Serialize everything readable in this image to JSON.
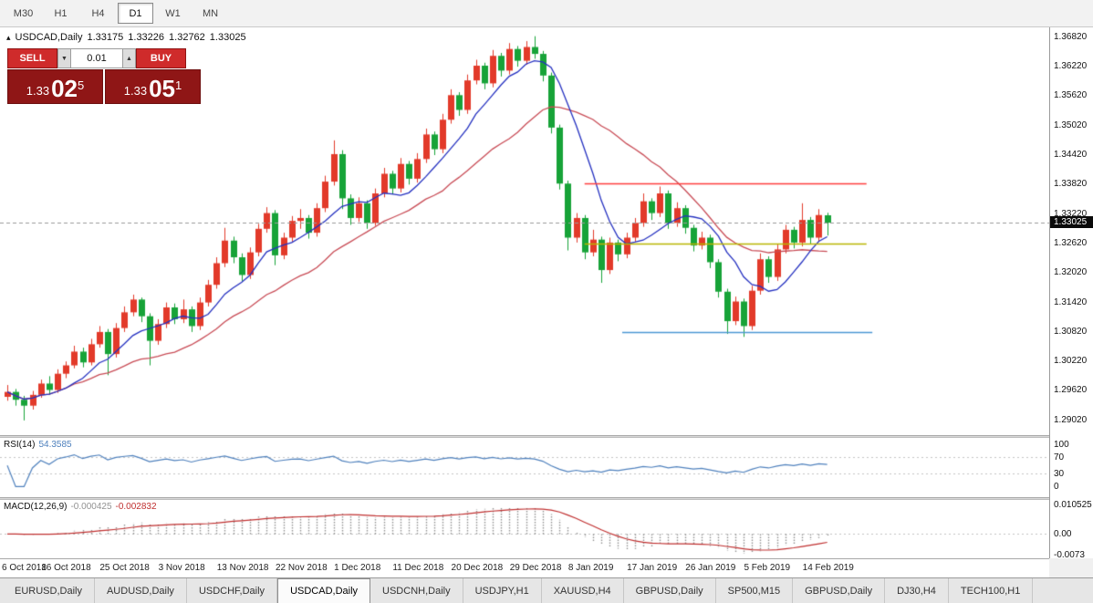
{
  "toolbar": {
    "timeframes": [
      {
        "label": "M30",
        "active": false
      },
      {
        "label": "H1",
        "active": false
      },
      {
        "label": "H4",
        "active": false
      },
      {
        "label": "D1",
        "active": true
      },
      {
        "label": "W1",
        "active": false
      },
      {
        "label": "MN",
        "active": false
      }
    ]
  },
  "chart_header": {
    "icon": "▴",
    "symbol": "USDCAD,Daily",
    "open": "1.33175",
    "high": "1.33226",
    "low": "1.32762",
    "close": "1.33025"
  },
  "trade_panel": {
    "sell_label": "SELL",
    "buy_label": "BUY",
    "volume": "0.01",
    "step_down_icon": "▼",
    "step_up_icon": "▲",
    "sell_price": {
      "prefix": "1.33",
      "big": "02",
      "sup": "5"
    },
    "buy_price": {
      "prefix": "1.33",
      "big": "05",
      "sup": "1"
    }
  },
  "price_scale": {
    "labels": [
      "1.36820",
      "1.36220",
      "1.35620",
      "1.35020",
      "1.34420",
      "1.33820",
      "1.33220",
      "1.32620",
      "1.32020",
      "1.31420",
      "1.30820",
      "1.30220",
      "1.29620",
      "1.29020"
    ],
    "current": "1.33025"
  },
  "rsi": {
    "title": "RSI(14)",
    "value": "54.3585",
    "period": 14,
    "scale_labels": [
      "100",
      "70",
      "30",
      "0"
    ],
    "level_lines": [
      70,
      30
    ],
    "line_color": "#4f81bd"
  },
  "macd": {
    "title": "MACD(12,26,9)",
    "value_main": "-0.000425",
    "value_signal": "-0.002832",
    "fast": 12,
    "slow": 26,
    "signal": 9,
    "scale_labels": [
      "0.010525",
      "0.00",
      "-0.0073"
    ],
    "histogram_color": "#929292",
    "signal_color": "#c03030"
  },
  "x_axis": {
    "labels": [
      {
        "text": "6 Oct 2018",
        "index": 0
      },
      {
        "text": "16 Oct 2018",
        "index": 7
      },
      {
        "text": "25 Oct 2018",
        "index": 14
      },
      {
        "text": "3 Nov 2018",
        "index": 21
      },
      {
        "text": "13 Nov 2018",
        "index": 28
      },
      {
        "text": "22 Nov 2018",
        "index": 35
      },
      {
        "text": "1 Dec 2018",
        "index": 42
      },
      {
        "text": "11 Dec 2018",
        "index": 49
      },
      {
        "text": "20 Dec 2018",
        "index": 56
      },
      {
        "text": "29 Dec 2018",
        "index": 63
      },
      {
        "text": "8 Jan 2019",
        "index": 70
      },
      {
        "text": "17 Jan 2019",
        "index": 77
      },
      {
        "text": "26 Jan 2019",
        "index": 84
      },
      {
        "text": "5 Feb 2019",
        "index": 91
      },
      {
        "text": "14 Feb 2019",
        "index": 98
      }
    ]
  },
  "tabs": [
    {
      "label": "EURUSD,Daily",
      "active": false
    },
    {
      "label": "AUDUSD,Daily",
      "active": false
    },
    {
      "label": "USDCHF,Daily",
      "active": false
    },
    {
      "label": "USDCAD,Daily",
      "active": true
    },
    {
      "label": "USDCNH,Daily",
      "active": false
    },
    {
      "label": "USDJPY,H1",
      "active": false
    },
    {
      "label": "XAUUSD,H4",
      "active": false
    },
    {
      "label": "GBPUSD,Daily",
      "active": false
    },
    {
      "label": "SP500,M15",
      "active": false
    },
    {
      "label": "GBPUSD,Daily",
      "active": false
    },
    {
      "label": "DJ30,H4",
      "active": false
    },
    {
      "label": "TECH100,H1",
      "active": false
    }
  ],
  "chart_data": {
    "type": "candlestick",
    "symbol": "USDCAD",
    "timeframe": "Daily",
    "up_color": "#e23a2a",
    "down_color": "#17a338",
    "ma_fast": {
      "type": "sma",
      "period": 8,
      "color": "#2430c0"
    },
    "ma_slow": {
      "type": "sma",
      "period": 21,
      "color": "#c84b55"
    },
    "price_min": 1.287,
    "price_max": 1.37,
    "current_price": 1.33025,
    "hlines": [
      {
        "price": 1.3382,
        "color": "#ff3d3d",
        "from_index": 69,
        "to_index": 102.7
      },
      {
        "price": 1.326,
        "color": "#b9b400",
        "from_index": 69,
        "to_index": 102.7
      },
      {
        "price": 1.308,
        "color": "#4b97d2",
        "from_index": 73.5,
        "to_index": 103.4
      }
    ],
    "candles": [
      [
        1.2948,
        1.2972,
        1.294,
        1.2958
      ],
      [
        1.2958,
        1.2964,
        1.293,
        1.2942
      ],
      [
        1.2942,
        1.295,
        1.29,
        1.293
      ],
      [
        1.293,
        1.296,
        1.2922,
        1.2952
      ],
      [
        1.2952,
        1.2983,
        1.2946,
        1.2975
      ],
      [
        1.2975,
        1.299,
        1.2952,
        1.2962
      ],
      [
        1.2962,
        1.3004,
        1.2956,
        1.2995
      ],
      [
        1.2995,
        1.302,
        1.2986,
        1.3012
      ],
      [
        1.3012,
        1.3052,
        1.3006,
        1.304
      ],
      [
        1.304,
        1.3048,
        1.3008,
        1.3018
      ],
      [
        1.3018,
        1.3066,
        1.3012,
        1.3055
      ],
      [
        1.3055,
        1.3092,
        1.3048,
        1.308
      ],
      [
        1.308,
        1.3086,
        1.2992,
        1.3035
      ],
      [
        1.3035,
        1.3098,
        1.3028,
        1.3088
      ],
      [
        1.3088,
        1.3132,
        1.308,
        1.312
      ],
      [
        1.312,
        1.3156,
        1.3112,
        1.3146
      ],
      [
        1.3146,
        1.315,
        1.31,
        1.3112
      ],
      [
        1.3112,
        1.3118,
        1.3012,
        1.3062
      ],
      [
        1.3062,
        1.3106,
        1.3054,
        1.3096
      ],
      [
        1.3096,
        1.314,
        1.3088,
        1.313
      ],
      [
        1.313,
        1.3138,
        1.3096,
        1.3106
      ],
      [
        1.3106,
        1.3146,
        1.3098,
        1.3126
      ],
      [
        1.3126,
        1.3132,
        1.308,
        1.3092
      ],
      [
        1.3092,
        1.315,
        1.3084,
        1.314
      ],
      [
        1.314,
        1.3186,
        1.3132,
        1.3176
      ],
      [
        1.3176,
        1.3232,
        1.3168,
        1.322
      ],
      [
        1.322,
        1.3292,
        1.3212,
        1.3266
      ],
      [
        1.3266,
        1.3274,
        1.322,
        1.3232
      ],
      [
        1.3232,
        1.324,
        1.3184,
        1.3196
      ],
      [
        1.3196,
        1.3252,
        1.3188,
        1.3242
      ],
      [
        1.3242,
        1.33,
        1.3234,
        1.329
      ],
      [
        1.329,
        1.3334,
        1.3282,
        1.3322
      ],
      [
        1.3322,
        1.3328,
        1.3216,
        1.3236
      ],
      [
        1.3236,
        1.3282,
        1.3228,
        1.3272
      ],
      [
        1.3272,
        1.3316,
        1.3264,
        1.3306
      ],
      [
        1.3306,
        1.333,
        1.329,
        1.3312
      ],
      [
        1.3312,
        1.3318,
        1.327,
        1.3282
      ],
      [
        1.3282,
        1.3342,
        1.3274,
        1.3332
      ],
      [
        1.3332,
        1.3398,
        1.3324,
        1.3386
      ],
      [
        1.3386,
        1.347,
        1.3378,
        1.3442
      ],
      [
        1.3442,
        1.345,
        1.333,
        1.3352
      ],
      [
        1.3352,
        1.336,
        1.3298,
        1.3312
      ],
      [
        1.3312,
        1.3354,
        1.3304,
        1.3342
      ],
      [
        1.3342,
        1.3348,
        1.329,
        1.3302
      ],
      [
        1.3302,
        1.3372,
        1.3296,
        1.3362
      ],
      [
        1.3362,
        1.3414,
        1.3354,
        1.3402
      ],
      [
        1.3402,
        1.3408,
        1.336,
        1.3372
      ],
      [
        1.3372,
        1.3434,
        1.3364,
        1.3422
      ],
      [
        1.3422,
        1.3428,
        1.338,
        1.3392
      ],
      [
        1.3392,
        1.3444,
        1.3384,
        1.3432
      ],
      [
        1.3432,
        1.3494,
        1.3424,
        1.3482
      ],
      [
        1.3482,
        1.3488,
        1.344,
        1.3452
      ],
      [
        1.3452,
        1.3524,
        1.3444,
        1.3512
      ],
      [
        1.3512,
        1.3574,
        1.3504,
        1.3562
      ],
      [
        1.3562,
        1.3568,
        1.352,
        1.3532
      ],
      [
        1.3532,
        1.3604,
        1.3524,
        1.3592
      ],
      [
        1.3592,
        1.3634,
        1.3584,
        1.3622
      ],
      [
        1.3622,
        1.3628,
        1.3574,
        1.3586
      ],
      [
        1.3586,
        1.3654,
        1.3578,
        1.3642
      ],
      [
        1.3642,
        1.3648,
        1.36,
        1.3612
      ],
      [
        1.3612,
        1.3668,
        1.3604,
        1.3656
      ],
      [
        1.3656,
        1.3662,
        1.362,
        1.3632
      ],
      [
        1.3632,
        1.3672,
        1.3624,
        1.366
      ],
      [
        1.366,
        1.3682,
        1.3636,
        1.3646
      ],
      [
        1.3646,
        1.3652,
        1.359,
        1.3602
      ],
      [
        1.3602,
        1.3608,
        1.3484,
        1.3496
      ],
      [
        1.3496,
        1.3502,
        1.337,
        1.3382
      ],
      [
        1.3382,
        1.3388,
        1.3246,
        1.3272
      ],
      [
        1.3272,
        1.3322,
        1.3262,
        1.3312
      ],
      [
        1.3312,
        1.3318,
        1.3228,
        1.3242
      ],
      [
        1.3242,
        1.3288,
        1.3234,
        1.3268
      ],
      [
        1.3268,
        1.3274,
        1.318,
        1.3206
      ],
      [
        1.3206,
        1.3272,
        1.3198,
        1.3262
      ],
      [
        1.3262,
        1.3268,
        1.3224,
        1.3238
      ],
      [
        1.3238,
        1.3282,
        1.323,
        1.3272
      ],
      [
        1.3272,
        1.3312,
        1.3264,
        1.3302
      ],
      [
        1.3302,
        1.3362,
        1.3294,
        1.3346
      ],
      [
        1.3346,
        1.3352,
        1.3308,
        1.3322
      ],
      [
        1.3322,
        1.3376,
        1.3314,
        1.3362
      ],
      [
        1.3362,
        1.3368,
        1.329,
        1.3302
      ],
      [
        1.3302,
        1.3344,
        1.3294,
        1.3332
      ],
      [
        1.3332,
        1.3338,
        1.328,
        1.3292
      ],
      [
        1.3292,
        1.3298,
        1.3244,
        1.3256
      ],
      [
        1.3256,
        1.3284,
        1.3248,
        1.3272
      ],
      [
        1.3272,
        1.3278,
        1.321,
        1.3222
      ],
      [
        1.3222,
        1.3228,
        1.315,
        1.3162
      ],
      [
        1.3162,
        1.3168,
        1.3076,
        1.3102
      ],
      [
        1.3102,
        1.3152,
        1.3094,
        1.3142
      ],
      [
        1.3142,
        1.3148,
        1.307,
        1.3092
      ],
      [
        1.3092,
        1.3174,
        1.3084,
        1.3164
      ],
      [
        1.3164,
        1.324,
        1.3156,
        1.3228
      ],
      [
        1.3228,
        1.3234,
        1.318,
        1.3192
      ],
      [
        1.3192,
        1.3258,
        1.3184,
        1.3248
      ],
      [
        1.3248,
        1.3298,
        1.324,
        1.3288
      ],
      [
        1.3288,
        1.3294,
        1.325,
        1.3262
      ],
      [
        1.3262,
        1.3342,
        1.3254,
        1.3308
      ],
      [
        1.3308,
        1.3314,
        1.326,
        1.3272
      ],
      [
        1.3272,
        1.333,
        1.3264,
        1.3318
      ],
      [
        1.33175,
        1.33226,
        1.32762,
        1.33025
      ]
    ]
  }
}
